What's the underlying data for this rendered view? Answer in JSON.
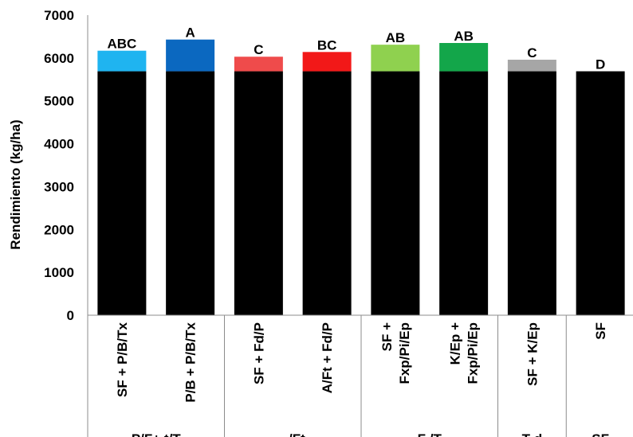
{
  "chart_data": {
    "type": "bar",
    "stacked": true,
    "ylabel": "Rendimiento (kg/ha)",
    "xlabel": "",
    "ylim": [
      0,
      7000
    ],
    "yticks": [
      0,
      1000,
      2000,
      3000,
      4000,
      5000,
      6000,
      7000
    ],
    "grid": false,
    "categories": [
      [
        "SF + P/B/Tx"
      ],
      [
        "P/B + P/B/Tx"
      ],
      [
        "SF + Fd/P"
      ],
      [
        "A/Ft + Fd/P"
      ],
      [
        "SF +",
        "Fxp/Pi/Ep"
      ],
      [
        "K/Ep +",
        "Fxp/Pi/Ep"
      ],
      [
        "SF + K/Ep"
      ],
      [
        "SF"
      ]
    ],
    "series": [
      {
        "values": [
          5690,
          5690,
          5690,
          5690,
          5690,
          5690,
          5690,
          5690
        ]
      },
      {
        "values": [
          480,
          740,
          340,
          450,
          620,
          660,
          270,
          0
        ]
      }
    ],
    "totals": [
      6170,
      6430,
      6030,
      6140,
      6310,
      6350,
      5960,
      5690
    ],
    "base_color": "#000000",
    "top_colors": [
      "#1fb4f0",
      "#0b68c0",
      "#ef4b4b",
      "#f21818",
      "#8fd14f",
      "#13a64a",
      "#a6a6a6",
      "#000000"
    ],
    "letters": [
      "ABC",
      "A",
      "C",
      "BC",
      "AB",
      "AB",
      "C",
      "D"
    ],
    "group_boundaries_after": [
      2,
      4,
      6,
      7
    ],
    "groups": [
      "P/F+ t/T",
      "- /Ft",
      "F /T",
      "T d",
      "SF"
    ]
  }
}
